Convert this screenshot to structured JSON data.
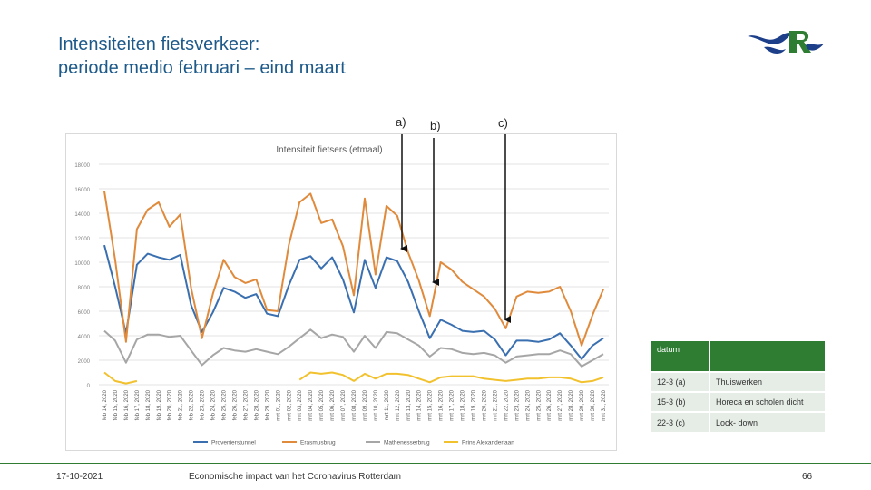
{
  "slide": {
    "title_line1": "Intensiteiten fietsverkeer:",
    "title_line2": "periode medio februari – eind maart",
    "footer_date": "17-10-2021",
    "footer_center": "Economische impact van het Coronavirus Rotterdam",
    "page_number": "66"
  },
  "annotations": {
    "a": "a)",
    "b": "b)",
    "c": "c)"
  },
  "legend_table": {
    "header": "datum",
    "rows": [
      {
        "date": "12-3 (a)",
        "event": "Thuiswerken"
      },
      {
        "date": "15-3 (b)",
        "event": "Horeca en scholen dicht"
      },
      {
        "date": "22-3 (c)",
        "event": "Lock- down"
      }
    ]
  },
  "colors": {
    "title": "#1d5a8a",
    "accent": "#2e7d32",
    "series": [
      "#3a6fb0",
      "#e08a3c",
      "#a6a6a6",
      "#f2c12e"
    ]
  },
  "chart_data": {
    "type": "line",
    "title": "Intensiteit fietsers (etmaal)",
    "ylim": [
      0,
      18000
    ],
    "yticks": [
      "0",
      "2000",
      "4000",
      "6000",
      "8000",
      "10000",
      "12000",
      "14000",
      "16000",
      "18000"
    ],
    "grid": true,
    "legend_position": "bottom",
    "categories": [
      "feb 14, 2020",
      "feb 15, 2020",
      "feb 16, 2020",
      "feb 17, 2020",
      "feb 18, 2020",
      "feb 19, 2020",
      "feb 20, 2020",
      "feb 21, 2020",
      "feb 22, 2020",
      "feb 23, 2020",
      "feb 24, 2020",
      "feb 25, 2020",
      "feb 26, 2020",
      "feb 27, 2020",
      "feb 28, 2020",
      "feb 29, 2020",
      "mrt 01, 2020",
      "mrt 02, 2020",
      "mrt 03, 2020",
      "mrt 04, 2020",
      "mrt 05, 2020",
      "mrt 06, 2020",
      "mrt 07, 2020",
      "mrt 08, 2020",
      "mrt 09, 2020",
      "mrt 10, 2020",
      "mrt 11, 2020",
      "mrt 12, 2020",
      "mrt 13, 2020",
      "mrt 14, 2020",
      "mrt 15, 2020",
      "mrt 16, 2020",
      "mrt 17, 2020",
      "mrt 18, 2020",
      "mrt 19, 2020",
      "mrt 20, 2020",
      "mrt 21, 2020",
      "mrt 22, 2020",
      "mrt 23, 2020",
      "mrt 24, 2020",
      "mrt 25, 2020",
      "mrt 26, 2020",
      "mrt 27, 2020",
      "mrt 28, 2020",
      "mrt 29, 2020",
      "mrt 30, 2020",
      "mrt 31, 2020"
    ],
    "series": [
      {
        "name": "Provenierstunnel",
        "values": [
          11400,
          8000,
          4200,
          9800,
          10700,
          10400,
          10200,
          10600,
          6500,
          4300,
          5900,
          7900,
          7600,
          7100,
          7400,
          5800,
          5600,
          8100,
          10200,
          10500,
          9500,
          10400,
          8600,
          5900,
          10200,
          7900,
          10400,
          10100,
          8400,
          6000,
          3800,
          5300,
          4900,
          4400,
          4300,
          4400,
          3700,
          2400,
          3600,
          3600,
          3500,
          3700,
          4200,
          3200,
          2100,
          3200,
          3800
        ]
      },
      {
        "name": "Erasmusbrug",
        "values": [
          15800,
          10200,
          3500,
          12700,
          14300,
          14900,
          12900,
          13900,
          7900,
          3800,
          7400,
          10200,
          8800,
          8300,
          8600,
          6100,
          6000,
          11400,
          14900,
          15600,
          13200,
          13500,
          11300,
          7300,
          15200,
          9000,
          14600,
          13800,
          10800,
          8500,
          5600,
          10000,
          9400,
          8400,
          7800,
          7200,
          6200,
          4600,
          7200,
          7600,
          7500,
          7600,
          8000,
          6000,
          3200,
          5700,
          7800
        ]
      },
      {
        "name": "Mathenesserbrug",
        "values": [
          4400,
          3600,
          1800,
          3700,
          4100,
          4100,
          3900,
          4000,
          2800,
          1600,
          2400,
          3000,
          2800,
          2700,
          2900,
          2700,
          2500,
          3100,
          3800,
          4500,
          3800,
          4100,
          3900,
          2700,
          4000,
          3000,
          4300,
          4200,
          3700,
          3200,
          2300,
          3000,
          2900,
          2600,
          2500,
          2600,
          2400,
          1800,
          2300,
          2400,
          2500,
          2500,
          2800,
          2500,
          1500,
          2000,
          2500
        ]
      },
      {
        "name": "Prins Alexanderlaan",
        "values": [
          1000,
          300,
          100,
          300,
          null,
          null,
          null,
          null,
          null,
          null,
          null,
          null,
          null,
          null,
          null,
          null,
          null,
          null,
          400,
          1000,
          900,
          1000,
          800,
          300,
          900,
          500,
          900,
          900,
          800,
          500,
          200,
          600,
          700,
          700,
          700,
          500,
          400,
          300,
          400,
          500,
          500,
          600,
          600,
          500,
          200,
          300,
          600
        ]
      }
    ]
  }
}
